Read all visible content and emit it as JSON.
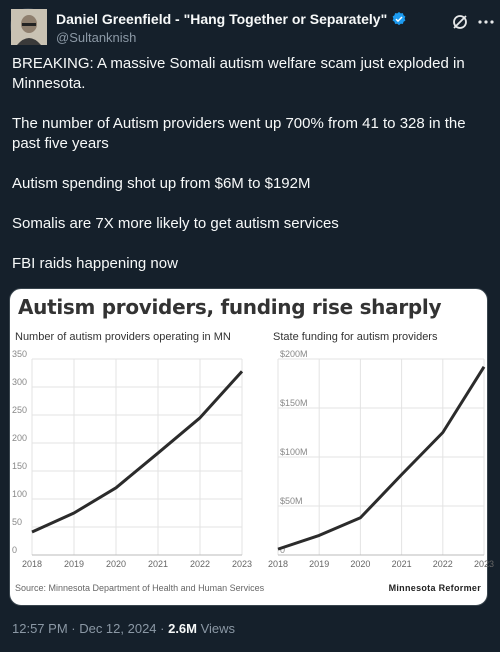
{
  "author": {
    "name": "Daniel Greenfield - \"Hang Together or Separately\"",
    "handle": "@Sultanknish"
  },
  "icons": {
    "verified": "verified-badge-icon",
    "grok": "grok-icon",
    "more": "more-options-icon"
  },
  "colors": {
    "background": "#15202b",
    "verified": "#1d9bf0",
    "line": "#2b2b2b"
  },
  "tweet": {
    "paragraphs": [
      "BREAKING: A massive Somali autism welfare scam just exploded in Minnesota.",
      "The number of Autism providers went up 700% from 41 to 328 in the past five years",
      "Autism spending shot up from $6M to $192M",
      "Somalis are 7X more likely to get autism services",
      "FBI raids happening now"
    ]
  },
  "media": {
    "title": "Autism providers, funding rise sharply",
    "source": "Source: Minnesota Department of Health and Human Services",
    "brand": "Minnesota Reformer"
  },
  "chart_data": [
    {
      "type": "line",
      "title": "Number of autism providers operating in MN",
      "x": [
        "2018",
        "2019",
        "2020",
        "2021",
        "2022",
        "2023"
      ],
      "values": [
        41,
        75,
        120,
        182,
        245,
        328
      ],
      "ylim": [
        0,
        350
      ],
      "yticks": [
        "0",
        "50",
        "100",
        "150",
        "200",
        "250",
        "300",
        "350"
      ],
      "grid": true
    },
    {
      "type": "line",
      "title": "State funding for autism providers",
      "x": [
        "2018",
        "2019",
        "2020",
        "2021",
        "2022",
        "2023"
      ],
      "values": [
        6,
        20,
        38,
        82,
        125,
        192
      ],
      "ylim": [
        0,
        200
      ],
      "yticks": [
        "0",
        "$50M",
        "$100M",
        "$150M",
        "$200M"
      ],
      "grid": true
    }
  ],
  "meta": {
    "time": "12:57 PM · Dec 12, 2024 · ",
    "views": "2.6M",
    "views_label": " Views"
  }
}
